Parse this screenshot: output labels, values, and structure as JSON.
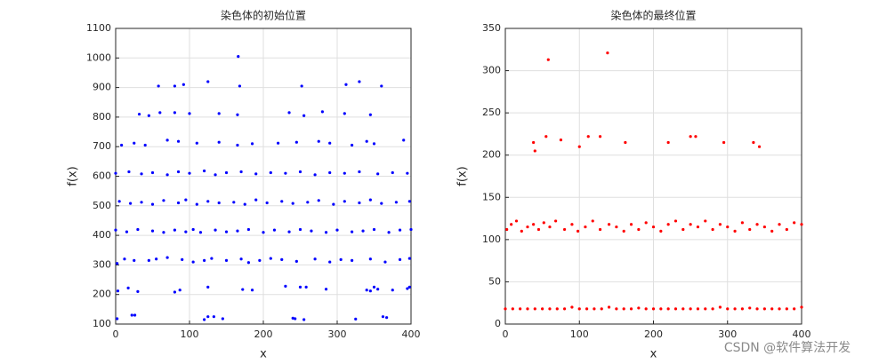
{
  "chart_data": [
    {
      "type": "scatter",
      "title": "染色体的初始位置",
      "x_label": "x",
      "y_label": "f(x)",
      "color": "#0000ff",
      "grid": true,
      "xlim": [
        0,
        400
      ],
      "xticks": [
        0,
        100,
        200,
        300,
        400
      ],
      "ylim": [
        100,
        1100
      ],
      "yticks": [
        100,
        200,
        300,
        400,
        500,
        600,
        700,
        800,
        900,
        1000,
        1100
      ],
      "x": [
        2,
        22,
        26,
        120,
        125,
        133,
        145,
        240,
        243,
        255,
        325,
        362,
        367,
        3,
        17,
        30,
        80,
        87,
        125,
        172,
        185,
        230,
        250,
        258,
        285,
        340,
        345,
        350,
        355,
        375,
        395,
        398,
        2,
        12,
        25,
        45,
        55,
        70,
        90,
        105,
        120,
        130,
        150,
        170,
        180,
        195,
        210,
        225,
        245,
        270,
        290,
        305,
        320,
        345,
        365,
        385,
        398,
        0,
        15,
        30,
        50,
        65,
        80,
        95,
        105,
        115,
        135,
        150,
        165,
        180,
        200,
        215,
        235,
        250,
        265,
        285,
        300,
        320,
        335,
        350,
        370,
        385,
        400,
        5,
        20,
        35,
        50,
        65,
        85,
        95,
        110,
        125,
        140,
        160,
        175,
        190,
        205,
        225,
        240,
        260,
        275,
        295,
        310,
        330,
        345,
        360,
        380,
        398,
        0,
        18,
        35,
        50,
        70,
        85,
        100,
        120,
        135,
        150,
        170,
        190,
        210,
        230,
        250,
        270,
        290,
        310,
        330,
        355,
        375,
        395,
        8,
        25,
        40,
        70,
        85,
        110,
        140,
        165,
        185,
        220,
        245,
        275,
        290,
        320,
        340,
        350,
        390,
        32,
        45,
        60,
        80,
        100,
        140,
        165,
        235,
        255,
        280,
        310,
        345,
        58,
        80,
        92,
        125,
        168,
        252,
        312,
        330,
        360,
        166
      ],
      "values": [
        118,
        130,
        130,
        115,
        125,
        125,
        118,
        120,
        118,
        115,
        117,
        125,
        122,
        212,
        222,
        210,
        208,
        215,
        225,
        217,
        215,
        228,
        225,
        225,
        218,
        215,
        212,
        225,
        218,
        215,
        220,
        225,
        305,
        320,
        315,
        315,
        320,
        325,
        318,
        310,
        315,
        322,
        315,
        320,
        308,
        315,
        322,
        318,
        312,
        320,
        310,
        318,
        315,
        320,
        310,
        318,
        322,
        418,
        412,
        420,
        415,
        410,
        418,
        412,
        420,
        410,
        418,
        412,
        415,
        420,
        410,
        418,
        412,
        420,
        415,
        410,
        418,
        412,
        415,
        420,
        410,
        418,
        420,
        515,
        508,
        512,
        505,
        518,
        510,
        520,
        505,
        515,
        510,
        512,
        505,
        520,
        510,
        515,
        508,
        512,
        518,
        505,
        515,
        510,
        520,
        508,
        512,
        515,
        610,
        615,
        608,
        612,
        605,
        615,
        610,
        618,
        605,
        612,
        615,
        608,
        612,
        610,
        615,
        605,
        612,
        610,
        615,
        608,
        612,
        610,
        705,
        712,
        705,
        722,
        718,
        712,
        715,
        705,
        710,
        712,
        715,
        718,
        712,
        705,
        718,
        710,
        722,
        810,
        805,
        815,
        815,
        812,
        812,
        808,
        815,
        805,
        818,
        812,
        808,
        905,
        905,
        910,
        920,
        905,
        905,
        910,
        920,
        905,
        1005
      ]
    },
    {
      "type": "scatter",
      "title": "染色体的最终位置",
      "x_label": "x",
      "y_label": "f(x)",
      "color": "#ff0000",
      "grid": true,
      "xlim": [
        0,
        400
      ],
      "xticks": [
        0,
        100,
        200,
        300,
        400
      ],
      "ylim": [
        0,
        350
      ],
      "yticks": [
        0,
        50,
        100,
        150,
        200,
        250,
        300,
        350
      ],
      "x": [
        0,
        10,
        20,
        30,
        40,
        50,
        60,
        70,
        80,
        90,
        100,
        110,
        120,
        130,
        140,
        150,
        160,
        170,
        180,
        190,
        200,
        210,
        220,
        230,
        240,
        250,
        260,
        270,
        280,
        290,
        300,
        310,
        320,
        330,
        340,
        350,
        360,
        370,
        380,
        390,
        400,
        2,
        8,
        15,
        22,
        30,
        38,
        45,
        52,
        60,
        68,
        80,
        90,
        98,
        108,
        118,
        128,
        140,
        150,
        160,
        170,
        180,
        190,
        200,
        210,
        220,
        230,
        240,
        250,
        260,
        270,
        280,
        290,
        300,
        310,
        320,
        330,
        340,
        350,
        360,
        370,
        380,
        390,
        400,
        38,
        40,
        55,
        75,
        100,
        112,
        128,
        162,
        220,
        250,
        257,
        295,
        335,
        343,
        58,
        138
      ],
      "values": [
        18,
        18,
        18,
        18,
        18,
        18,
        18,
        18,
        18,
        20,
        18,
        18,
        18,
        18,
        20,
        18,
        18,
        18,
        19,
        18,
        18,
        18,
        18,
        18,
        18,
        18,
        18,
        18,
        18,
        20,
        18,
        18,
        18,
        19,
        18,
        18,
        18,
        18,
        18,
        18,
        20,
        112,
        118,
        122,
        110,
        115,
        118,
        112,
        120,
        115,
        122,
        112,
        118,
        110,
        115,
        122,
        112,
        118,
        115,
        110,
        118,
        112,
        120,
        115,
        110,
        118,
        122,
        112,
        118,
        115,
        122,
        112,
        118,
        115,
        110,
        120,
        112,
        118,
        115,
        110,
        118,
        112,
        120,
        118,
        215,
        205,
        222,
        218,
        210,
        222,
        222,
        215,
        215,
        222,
        222,
        215,
        215,
        210,
        313,
        321
      ]
    }
  ],
  "watermark": "CSDN @软件算法开发"
}
